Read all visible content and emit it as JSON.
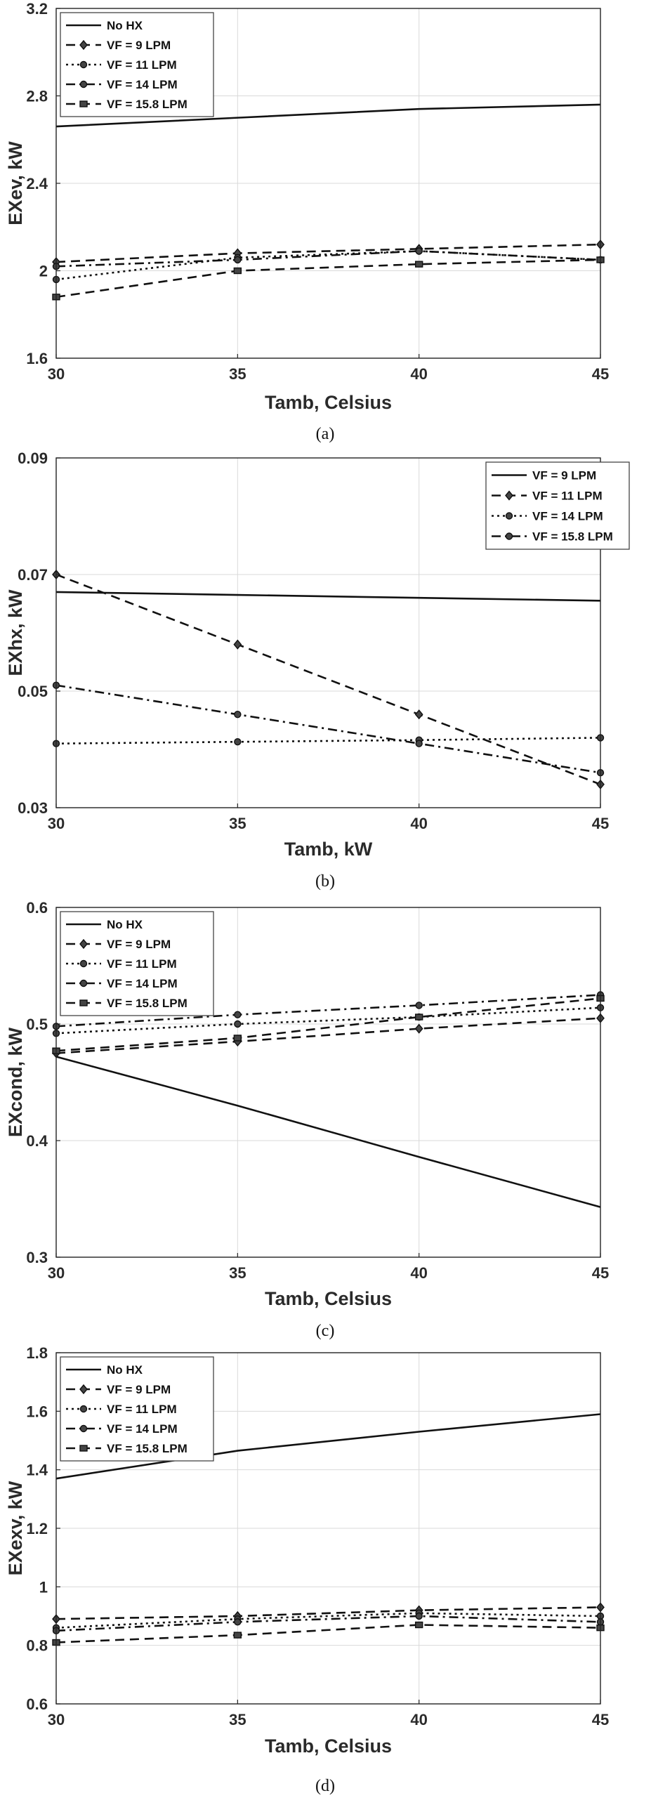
{
  "chart_data": [
    {
      "id": "a",
      "type": "line",
      "caption": "(a)",
      "title": "",
      "xlabel": "Tamb, Celsius",
      "ylabel": "EXev, kW",
      "xlim": [
        30,
        45
      ],
      "ylim": [
        1.6,
        3.2
      ],
      "xticks": [
        30,
        35,
        40,
        45
      ],
      "yticks": [
        1.6,
        2,
        2.4,
        2.8,
        3.2
      ],
      "ytick_labels": [
        "1.6",
        "2",
        "2.4",
        "2.8",
        "3.2"
      ],
      "legend_position": "top-left",
      "grid": true,
      "x": [
        30,
        35,
        40,
        45
      ],
      "series": [
        {
          "name": "No HX",
          "style": "solid",
          "marker": "none",
          "values": [
            2.66,
            2.7,
            2.74,
            2.76
          ]
        },
        {
          "name": "VF = 9 LPM",
          "style": "dashed",
          "marker": "diamond",
          "values": [
            2.04,
            2.08,
            2.1,
            2.12
          ]
        },
        {
          "name": "VF = 11 LPM",
          "style": "dotted",
          "marker": "circle",
          "values": [
            1.96,
            2.06,
            2.09,
            2.05
          ]
        },
        {
          "name": "VF = 14 LPM",
          "style": "dashdot",
          "marker": "circle",
          "values": [
            2.02,
            2.05,
            2.09,
            2.05
          ]
        },
        {
          "name": "VF = 15.8 LPM",
          "style": "dashed",
          "marker": "square",
          "values": [
            1.88,
            2.0,
            2.03,
            2.05
          ]
        }
      ]
    },
    {
      "id": "b",
      "type": "line",
      "caption": "(b)",
      "title": "",
      "xlabel": "Tamb, kW",
      "ylabel": "EXhx, kW",
      "xlim": [
        30,
        45
      ],
      "ylim": [
        0.03,
        0.09
      ],
      "xticks": [
        30,
        35,
        40,
        45
      ],
      "yticks": [
        0.03,
        0.05,
        0.07,
        0.09
      ],
      "ytick_labels": [
        "0.03",
        "0.05",
        "0.07",
        "0.09"
      ],
      "legend_position": "top-right",
      "grid": true,
      "x": [
        30,
        35,
        40,
        45
      ],
      "series": [
        {
          "name": "VF = 9 LPM",
          "style": "solid",
          "marker": "none",
          "values": [
            0.067,
            0.0665,
            0.066,
            0.0655
          ]
        },
        {
          "name": "VF = 11 LPM",
          "style": "dashed",
          "marker": "diamond",
          "values": [
            0.07,
            0.058,
            0.046,
            0.034
          ]
        },
        {
          "name": "VF = 14 LPM",
          "style": "dotted",
          "marker": "circle",
          "values": [
            0.041,
            0.0413,
            0.0416,
            0.042
          ]
        },
        {
          "name": "VF = 15.8 LPM",
          "style": "dashdot",
          "marker": "circle",
          "values": [
            0.051,
            0.046,
            0.041,
            0.036
          ]
        }
      ]
    },
    {
      "id": "c",
      "type": "line",
      "caption": "(c)",
      "title": "",
      "xlabel": "Tamb, Celsius",
      "ylabel": "EXcond, kW",
      "xlim": [
        30,
        45
      ],
      "ylim": [
        0.3,
        0.6
      ],
      "xticks": [
        30,
        35,
        40,
        45
      ],
      "yticks": [
        0.3,
        0.4,
        0.5,
        0.6
      ],
      "ytick_labels": [
        "0.3",
        "0.4",
        "0.5",
        "0.6"
      ],
      "legend_position": "top-left",
      "grid": true,
      "x": [
        30,
        35,
        40,
        45
      ],
      "series": [
        {
          "name": "No HX",
          "style": "solid",
          "marker": "none",
          "values": [
            0.472,
            0.43,
            0.386,
            0.343
          ]
        },
        {
          "name": "VF = 9 LPM",
          "style": "dashed",
          "marker": "diamond",
          "values": [
            0.475,
            0.485,
            0.496,
            0.505
          ]
        },
        {
          "name": "VF = 11 LPM",
          "style": "dotted",
          "marker": "circle",
          "values": [
            0.492,
            0.5,
            0.506,
            0.514
          ]
        },
        {
          "name": "VF = 14 LPM",
          "style": "dashdot",
          "marker": "circle",
          "values": [
            0.498,
            0.508,
            0.516,
            0.525
          ]
        },
        {
          "name": "VF = 15.8 LPM",
          "style": "dashed",
          "marker": "square",
          "values": [
            0.477,
            0.488,
            0.506,
            0.522
          ]
        }
      ]
    },
    {
      "id": "d",
      "type": "line",
      "caption": "(d)",
      "title": "",
      "xlabel": "Tamb, Celsius",
      "ylabel": "EXexv, kW",
      "xlim": [
        30,
        45
      ],
      "ylim": [
        0.6,
        1.8
      ],
      "xticks": [
        30,
        35,
        40,
        45
      ],
      "yticks": [
        0.6,
        0.8,
        1,
        1.2,
        1.4,
        1.6,
        1.8
      ],
      "ytick_labels": [
        "0.6",
        "0.8",
        "1",
        "1.2",
        "1.4",
        "1.6",
        "1.8"
      ],
      "legend_position": "top-left",
      "grid": true,
      "x": [
        30,
        35,
        40,
        45
      ],
      "series": [
        {
          "name": "No HX",
          "style": "solid",
          "marker": "none",
          "values": [
            1.37,
            1.465,
            1.53,
            1.59
          ]
        },
        {
          "name": "VF = 9 LPM",
          "style": "dashed",
          "marker": "diamond",
          "values": [
            0.89,
            0.9,
            0.92,
            0.93
          ]
        },
        {
          "name": "VF = 11 LPM",
          "style": "dotted",
          "marker": "circle",
          "values": [
            0.86,
            0.89,
            0.91,
            0.9
          ]
        },
        {
          "name": "VF = 14 LPM",
          "style": "dashdot",
          "marker": "circle",
          "values": [
            0.85,
            0.88,
            0.9,
            0.88
          ]
        },
        {
          "name": "VF = 15.8 LPM",
          "style": "dashed",
          "marker": "square",
          "values": [
            0.81,
            0.835,
            0.87,
            0.86
          ]
        }
      ]
    }
  ]
}
